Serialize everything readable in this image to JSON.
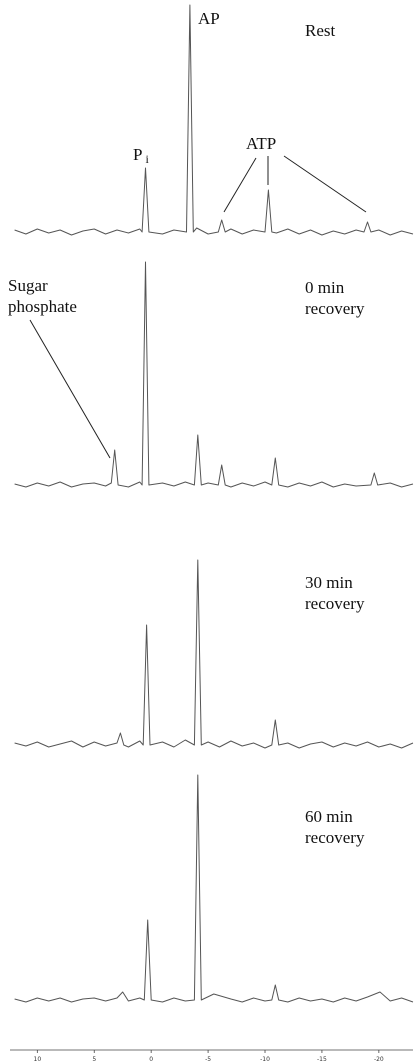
{
  "chart_data": [
    {
      "type": "line",
      "title": [
        "Rest"
      ],
      "annotations": [
        [
          "AP"
        ],
        [
          "P",
          "i"
        ],
        [
          "ATP"
        ]
      ],
      "color": "#555555",
      "xlim": [
        12.4,
        -23
      ],
      "ylim": [
        -20,
        230
      ],
      "x": [
        12,
        11,
        10,
        9,
        8,
        7,
        6,
        5,
        4,
        3,
        2,
        1,
        0.8,
        0.5,
        0.2,
        -1,
        -2,
        -3.1,
        -3.4,
        -3.7,
        -4,
        -5,
        -5.9,
        -6.2,
        -6.5,
        -7,
        -8,
        -9,
        -10,
        -10.3,
        -10.6,
        -11,
        -12,
        -13,
        -14,
        -15,
        -16,
        -17,
        -18,
        -18.7,
        -19,
        -19.3,
        -20,
        -21,
        -22,
        -23
      ],
      "values": [
        2,
        -2,
        3,
        -1,
        2,
        -3,
        1,
        3,
        -2,
        2,
        -1,
        3,
        0,
        64,
        0,
        -2,
        2,
        0,
        227,
        0,
        4,
        -2,
        0,
        12,
        0,
        3,
        -2,
        2,
        0,
        42,
        0,
        -1,
        3,
        -2,
        2,
        -3,
        1,
        -2,
        2,
        0,
        10,
        0,
        2,
        -3,
        1,
        -2
      ]
    },
    {
      "type": "line",
      "title": [
        "0 min",
        "recovery"
      ],
      "annotations": [
        [
          "Sugar",
          "phosphate"
        ]
      ],
      "color": "#555555",
      "xlim": [
        12.4,
        -23
      ],
      "ylim": [
        -20,
        230
      ],
      "x": [
        12,
        11,
        10,
        9,
        8,
        7,
        6,
        5,
        4,
        3.5,
        3.2,
        2.9,
        2,
        1,
        0.8,
        0.5,
        0.2,
        -1,
        -2,
        -3,
        -3.8,
        -4.1,
        -4.4,
        -5,
        -5.9,
        -6.2,
        -6.5,
        -7,
        -8,
        -9,
        -10,
        -10.6,
        -10.9,
        -11.2,
        -12,
        -13,
        -14,
        -15,
        -16,
        -17,
        -18,
        -19.3,
        -19.6,
        -19.9,
        -21,
        -22,
        -23
      ],
      "values": [
        1,
        -2,
        2,
        -1,
        3,
        -2,
        1,
        2,
        -1,
        2,
        35,
        0,
        -2,
        3,
        0,
        223,
        0,
        2,
        -1,
        3,
        0,
        50,
        0,
        2,
        0,
        20,
        0,
        -2,
        2,
        -1,
        3,
        0,
        27,
        0,
        -2,
        2,
        -1,
        3,
        -2,
        1,
        -1,
        0,
        12,
        0,
        2,
        -2,
        1
      ]
    },
    {
      "type": "line",
      "title": [
        "30 min",
        "recovery"
      ],
      "color": "#555555",
      "xlim": [
        12.4,
        -23
      ],
      "ylim": [
        -20,
        230
      ],
      "x": [
        12,
        11,
        10,
        9,
        8,
        7,
        6,
        5,
        4,
        3,
        2.7,
        2.4,
        2,
        1,
        0.7,
        0.4,
        0.1,
        -1,
        -2,
        -3,
        -3.8,
        -4.1,
        -4.4,
        -5,
        -6,
        -7,
        -8,
        -9,
        -10,
        -10.6,
        -10.9,
        -11.2,
        -12,
        -13,
        -14,
        -15,
        -16,
        -17,
        -18,
        -19,
        -20,
        -21,
        -22,
        -23
      ],
      "values": [
        2,
        -1,
        3,
        -2,
        1,
        4,
        -2,
        3,
        -1,
        2,
        12,
        0,
        -2,
        4,
        0,
        120,
        0,
        3,
        -2,
        5,
        0,
        185,
        0,
        3,
        -2,
        4,
        -1,
        2,
        -3,
        0,
        25,
        0,
        2,
        -3,
        1,
        3,
        -2,
        2,
        -1,
        3,
        -2,
        1,
        -3,
        2
      ]
    },
    {
      "type": "line",
      "title": [
        "60 min",
        "recovery"
      ],
      "color": "#555555",
      "xlim": [
        12.4,
        -23
      ],
      "ylim": [
        -20,
        230
      ],
      "xticks": [
        10,
        5,
        0,
        -5,
        -10,
        -15,
        -20
      ],
      "x": [
        12,
        11,
        10,
        9,
        8,
        7,
        6,
        5,
        4,
        3,
        2.5,
        2,
        1,
        0.6,
        0.3,
        0,
        -1,
        -2,
        -3,
        -3.8,
        -4.1,
        -4.4,
        -5.5,
        -7,
        -8,
        -9,
        -10,
        -10.6,
        -10.9,
        -11.2,
        -12,
        -13,
        -14,
        -15,
        -16,
        -17,
        -18,
        -19,
        -20.1,
        -21,
        -22,
        -23
      ],
      "values": [
        1,
        -2,
        2,
        -1,
        2,
        -2,
        1,
        2,
        -1,
        2,
        8,
        -1,
        2,
        0,
        80,
        0,
        -2,
        2,
        -1,
        0,
        225,
        0,
        6,
        1,
        -2,
        2,
        -1,
        0,
        15,
        0,
        -2,
        2,
        -1,
        1,
        -2,
        2,
        -1,
        3,
        8,
        -1,
        2,
        -2
      ]
    }
  ]
}
